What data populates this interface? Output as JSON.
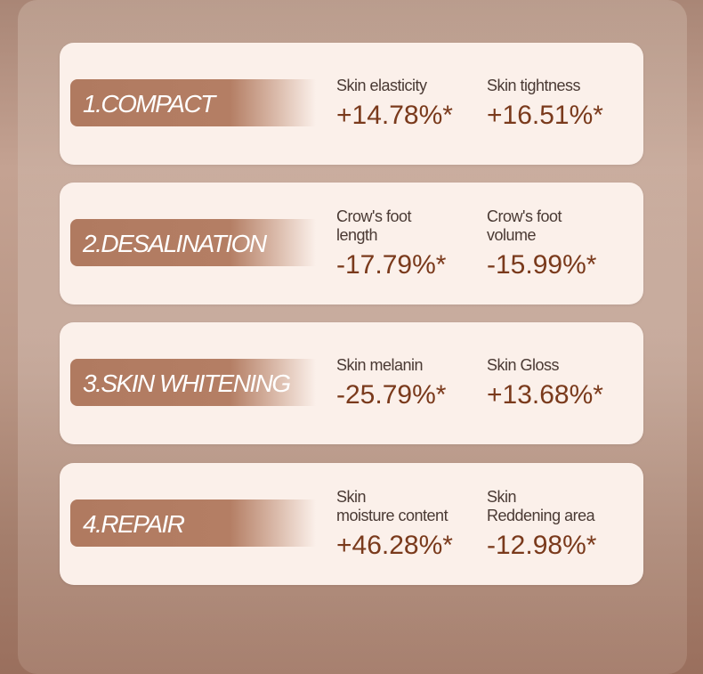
{
  "colors": {
    "card": "#fbf0ea",
    "label_bg": "#b07a60",
    "value": "#7a3a1c",
    "metric_label": "#4a3a34"
  },
  "sections": [
    {
      "title": "1.COMPACT",
      "metrics": [
        {
          "label": "Skin elasticity",
          "value": "+14.78%*"
        },
        {
          "label": "Skin tightness",
          "value": "+16.51%*"
        }
      ]
    },
    {
      "title": "2.DESALINATION",
      "metrics": [
        {
          "label": "Crow's foot\nlength",
          "value": "-17.79%*"
        },
        {
          "label": "Crow's foot\nvolume",
          "value": "-15.99%*"
        }
      ]
    },
    {
      "title": "3.SKIN WHITENING",
      "metrics": [
        {
          "label": "Skin melanin",
          "value": "-25.79%*"
        },
        {
          "label": "Skin Gloss",
          "value": "+13.68%*"
        }
      ]
    },
    {
      "title": "4.REPAIR",
      "metrics": [
        {
          "label": "Skin\nmoisture content",
          "value": "+46.28%*"
        },
        {
          "label": "Skin\nReddening area",
          "value": "-12.98%*"
        }
      ]
    }
  ]
}
